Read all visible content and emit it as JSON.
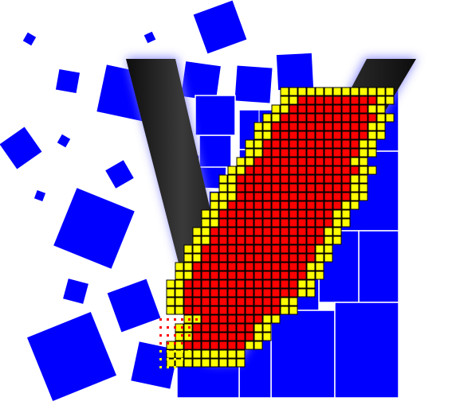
{
  "logo": {
    "name": "voxel-v-logo",
    "colors": {
      "background": "#ffffff",
      "tile_blue": "#0000ff",
      "tile_line": "#ffffff",
      "v_stroke": "#1a1a1a",
      "voxel_yellow": "#ffff00",
      "voxel_red": "#ff0000",
      "voxel_edge": "#000000",
      "glow": "#7f7fff"
    },
    "icon_names": [
      "v-letter-icon",
      "voxel-grid-icon",
      "scattered-square-icons"
    ]
  }
}
